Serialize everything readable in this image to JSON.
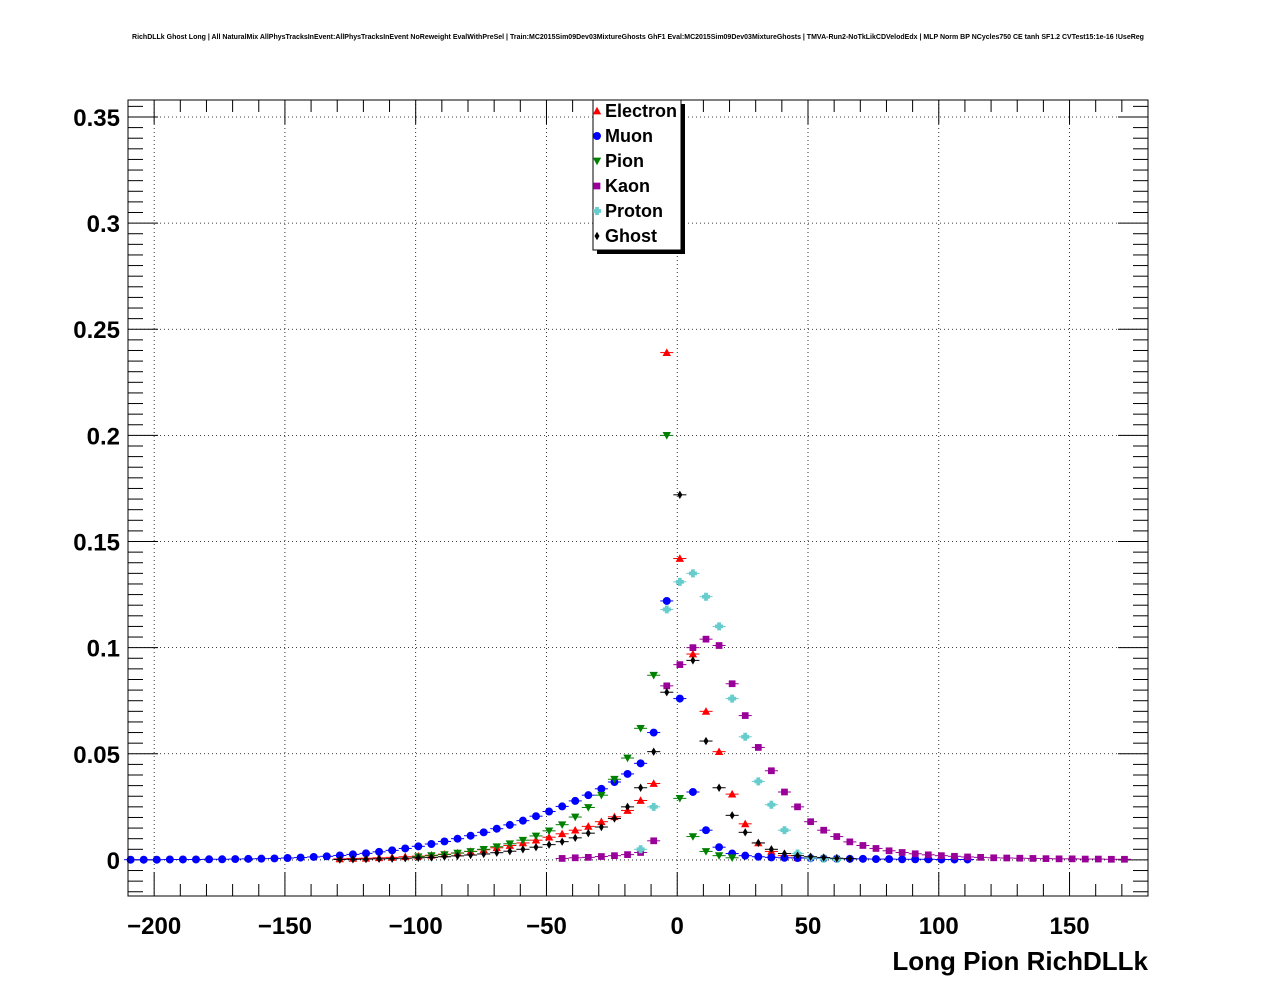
{
  "title": "RichDLLk Ghost Long | All NaturalMix AllPhysTracksInEvent:AllPhysTracksInEvent NoReweight EvalWithPreSel | Train:MC2015Sim09Dev03MixtureGhosts GhF1 Eval:MC2015Sim09Dev03MixtureGhosts | TMVA-Run2-NoTkLikCDVelodEdx | MLP Norm BP NCycles750 CE tanh SF1.2 CVTest15:1e-16 !UseReg",
  "chart_data": {
    "type": "scatter",
    "title": "RichDLLk Ghost Long | All NaturalMix AllPhysTracksInEvent:AllPhysTracksInEvent NoReweight EvalWithPreSel | Train:MC2015Sim09Dev03MixtureGhosts GhF1 Eval:MC2015Sim09Dev03MixtureGhosts | TMVA-Run2-NoTkLikCDVelodEdx | MLP Norm BP NCycles750 CE tanh SF1.2 CVTest15:1e-16 !UseReg",
    "xlabel": "Long Pion RichDLLk",
    "ylabel": "",
    "xlim": [
      -210,
      180
    ],
    "ylim": [
      -0.017,
      0.358
    ],
    "xticks": [
      -200,
      -150,
      -100,
      -50,
      0,
      50,
      100,
      150
    ],
    "xtick_labels": [
      "−200",
      "−150",
      "−100",
      "−50",
      "0",
      "50",
      "100",
      "150"
    ],
    "yticks": [
      0,
      0.05,
      0.1,
      0.15,
      0.2,
      0.25,
      0.3,
      0.35
    ],
    "ytick_labels": [
      "0",
      "0.05",
      "0.1",
      "0.15",
      "0.2",
      "0.25",
      "0.3",
      "0.35"
    ],
    "grid": true,
    "legend_position": "top-center",
    "series": [
      {
        "name": "Electron",
        "color": "#ff0000",
        "marker": "triangle-up",
        "x": [
          -129,
          -124,
          -119,
          -114,
          -109,
          -104,
          -99,
          -94,
          -89,
          -84,
          -79,
          -74,
          -69,
          -64,
          -59,
          -54,
          -49,
          -44,
          -39,
          -34,
          -29,
          -24,
          -19,
          -14,
          -9,
          -4,
          1,
          6,
          11,
          16,
          21,
          26,
          31,
          36,
          41,
          46
        ],
        "y": [
          0.0005,
          0.0007,
          0.0008,
          0.001,
          0.0012,
          0.0015,
          0.0018,
          0.0022,
          0.0027,
          0.0033,
          0.004,
          0.0048,
          0.0057,
          0.0068,
          0.008,
          0.0093,
          0.0107,
          0.0123,
          0.014,
          0.0158,
          0.018,
          0.0203,
          0.0233,
          0.028,
          0.036,
          0.239,
          0.142,
          0.097,
          0.07,
          0.051,
          0.031,
          0.017,
          0.008,
          0.004,
          0.002,
          0.001
        ]
      },
      {
        "name": "Muon",
        "color": "#0000ff",
        "marker": "circle",
        "x": [
          -209,
          -204,
          -199,
          -194,
          -189,
          -184,
          -179,
          -174,
          -169,
          -164,
          -159,
          -154,
          -149,
          -144,
          -139,
          -134,
          -129,
          -124,
          -119,
          -114,
          -109,
          -104,
          -99,
          -94,
          -89,
          -84,
          -79,
          -74,
          -69,
          -64,
          -59,
          -54,
          -49,
          -44,
          -39,
          -34,
          -29,
          -24,
          -19,
          -14,
          -9,
          -4,
          1,
          6,
          11,
          16,
          21,
          26,
          31,
          36,
          41,
          46,
          51,
          56,
          61,
          66,
          71,
          76,
          81,
          86,
          91,
          96,
          101,
          106,
          111
        ],
        "y": [
          0.0001,
          0.0001,
          0.0001,
          0.0002,
          0.0002,
          0.0002,
          0.0003,
          0.0003,
          0.0004,
          0.0005,
          0.0006,
          0.0007,
          0.0009,
          0.0011,
          0.0014,
          0.0017,
          0.0021,
          0.0026,
          0.0031,
          0.0038,
          0.0045,
          0.0054,
          0.0064,
          0.0075,
          0.0087,
          0.01,
          0.0114,
          0.013,
          0.0147,
          0.0165,
          0.0185,
          0.0206,
          0.0228,
          0.0252,
          0.0278,
          0.0305,
          0.0335,
          0.0367,
          0.0405,
          0.0455,
          0.06,
          0.122,
          0.076,
          0.032,
          0.014,
          0.006,
          0.003,
          0.002,
          0.0015,
          0.0012,
          0.001,
          0.0009,
          0.0008,
          0.0007,
          0.0006,
          0.0005,
          0.0005,
          0.0004,
          0.0004,
          0.0003,
          0.0003,
          0.0003,
          0.0002,
          0.0002,
          0.0002
        ]
      },
      {
        "name": "Pion",
        "color": "#008000",
        "marker": "triangle-down",
        "x": [
          -99,
          -94,
          -89,
          -84,
          -79,
          -74,
          -69,
          -64,
          -59,
          -54,
          -49,
          -44,
          -39,
          -34,
          -29,
          -24,
          -19,
          -14,
          -9,
          -4,
          1,
          6,
          11,
          16,
          21
        ],
        "y": [
          0.0015,
          0.002,
          0.0025,
          0.0032,
          0.004,
          0.005,
          0.0062,
          0.0076,
          0.0093,
          0.0113,
          0.0137,
          0.0166,
          0.0202,
          0.0247,
          0.0305,
          0.038,
          0.048,
          0.062,
          0.087,
          0.2,
          0.029,
          0.011,
          0.004,
          0.002,
          0.001
        ]
      },
      {
        "name": "Kaon",
        "color": "#990099",
        "marker": "square",
        "x": [
          -44,
          -39,
          -34,
          -29,
          -24,
          -19,
          -14,
          -9,
          -4,
          1,
          6,
          11,
          16,
          21,
          26,
          31,
          36,
          41,
          46,
          51,
          56,
          61,
          66,
          71,
          76,
          81,
          86,
          91,
          96,
          101,
          106,
          111,
          116,
          121,
          126,
          131,
          136,
          141,
          146,
          151,
          156,
          161,
          166,
          171
        ],
        "y": [
          0.0007,
          0.001,
          0.0012,
          0.0016,
          0.002,
          0.0025,
          0.0035,
          0.009,
          0.082,
          0.092,
          0.1,
          0.104,
          0.101,
          0.083,
          0.068,
          0.053,
          0.042,
          0.032,
          0.025,
          0.018,
          0.014,
          0.011,
          0.0085,
          0.0068,
          0.0054,
          0.0043,
          0.0035,
          0.0029,
          0.0024,
          0.002,
          0.0017,
          0.0014,
          0.0012,
          0.001,
          0.0009,
          0.0008,
          0.0007,
          0.0006,
          0.0005,
          0.0005,
          0.0004,
          0.0004,
          0.0003,
          0.0003
        ]
      },
      {
        "name": "Proton",
        "color": "#66cccc",
        "marker": "cross",
        "x": [
          -14,
          -9,
          -4,
          1,
          6,
          11,
          16,
          21,
          26,
          31,
          36,
          41,
          46,
          51,
          56,
          61
        ],
        "y": [
          0.005,
          0.025,
          0.118,
          0.131,
          0.135,
          0.124,
          0.11,
          0.076,
          0.058,
          0.037,
          0.026,
          0.014,
          0.003,
          0.001,
          0.0006,
          0.0004
        ]
      },
      {
        "name": "Ghost",
        "color": "#000000",
        "marker": "diamond",
        "x": [
          -129,
          -124,
          -119,
          -114,
          -109,
          -104,
          -99,
          -94,
          -89,
          -84,
          -79,
          -74,
          -69,
          -64,
          -59,
          -54,
          -49,
          -44,
          -39,
          -34,
          -29,
          -24,
          -19,
          -14,
          -9,
          -4,
          1,
          6,
          11,
          16,
          21,
          26,
          31,
          36,
          41,
          46,
          51,
          56,
          61,
          66
        ],
        "y": [
          0.0002,
          0.0003,
          0.0004,
          0.0005,
          0.0006,
          0.0008,
          0.001,
          0.0012,
          0.0015,
          0.0019,
          0.0023,
          0.0028,
          0.0034,
          0.0041,
          0.005,
          0.006,
          0.0072,
          0.0086,
          0.0104,
          0.0126,
          0.0155,
          0.0195,
          0.025,
          0.034,
          0.051,
          0.079,
          0.172,
          0.094,
          0.056,
          0.034,
          0.021,
          0.013,
          0.008,
          0.005,
          0.003,
          0.002,
          0.0015,
          0.0011,
          0.0008,
          0.0006
        ]
      }
    ]
  }
}
